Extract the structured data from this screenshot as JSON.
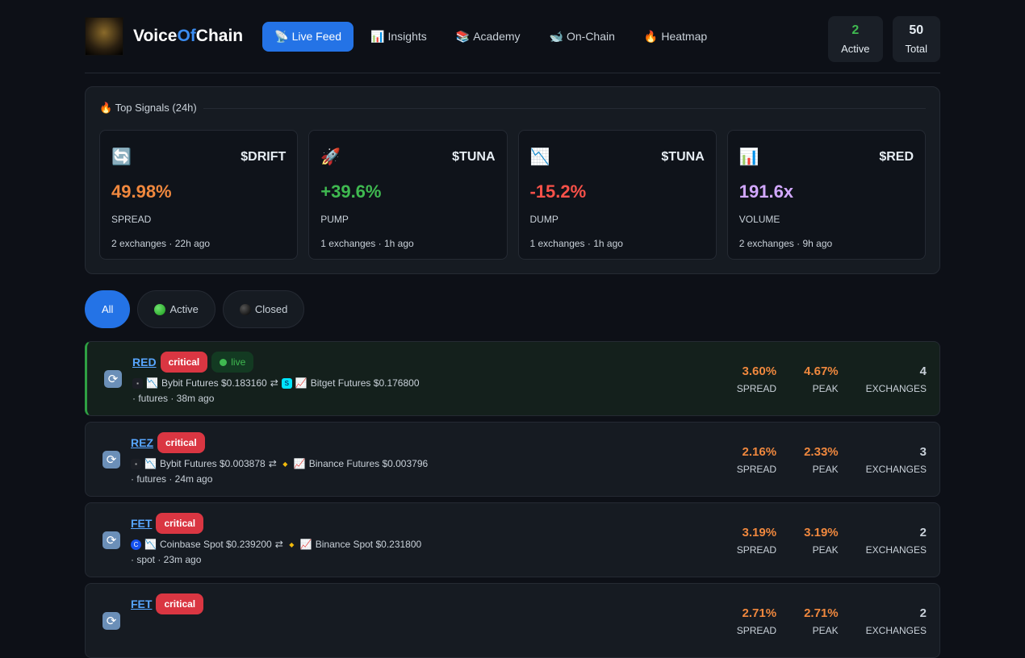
{
  "brand": {
    "pre": "Voice",
    "mid": "Of",
    "post": "Chain"
  },
  "nav": [
    {
      "icon": "📡",
      "label": "Live Feed"
    },
    {
      "icon": "📊",
      "label": "Insights"
    },
    {
      "icon": "📚",
      "label": "Academy"
    },
    {
      "icon": "🐋",
      "label": "On-Chain"
    },
    {
      "icon": "🔥",
      "label": "Heatmap"
    }
  ],
  "stats": {
    "active": "2",
    "active_label": "Active",
    "total": "50",
    "total_label": "Total"
  },
  "top": {
    "title": "🔥 Top Signals (24h)",
    "cards": [
      {
        "icon": "🔄",
        "symbol": "$DRIFT",
        "value": "49.98%",
        "type": "SPREAD",
        "meta": "2 exchanges · 22h ago",
        "color": "#f0883e"
      },
      {
        "icon": "🚀",
        "symbol": "$TUNA",
        "value": "+39.6%",
        "type": "PUMP",
        "meta": "1 exchanges · 1h ago",
        "color": "#3fb950"
      },
      {
        "icon": "📉",
        "symbol": "$TUNA",
        "value": "-15.2%",
        "type": "DUMP",
        "meta": "1 exchanges · 1h ago",
        "color": "#f85149"
      },
      {
        "icon": "📊",
        "symbol": "$RED",
        "value": "191.6x",
        "type": "VOLUME",
        "meta": "2 exchanges · 9h ago",
        "color": "#d2a8ff"
      }
    ]
  },
  "filters": {
    "all": "All",
    "active": "Active",
    "closed": "Closed"
  },
  "labels": {
    "spread": "SPREAD",
    "peak": "PEAK",
    "exchanges": "EXCHANGES",
    "critical": "critical",
    "live": "live",
    "arrow": "⇄",
    "down": "📉",
    "up": "📈"
  },
  "rows": [
    {
      "ticker": "RED",
      "from": "Bybit Futures $0.183160",
      "to": "Bitget Futures $0.176800",
      "sub": "· futures · 38m ago",
      "spread": "3.60%",
      "peak": "4.67%",
      "exchanges": "4"
    },
    {
      "ticker": "REZ",
      "from": "Bybit Futures $0.003878",
      "to": "Binance Futures $0.003796",
      "sub": "· futures · 24m ago",
      "spread": "2.16%",
      "peak": "2.33%",
      "exchanges": "3"
    },
    {
      "ticker": "FET",
      "from": "Coinbase Spot $0.239200",
      "to": "Binance Spot $0.231800",
      "sub": "· spot · 23m ago",
      "spread": "3.19%",
      "peak": "3.19%",
      "exchanges": "2"
    },
    {
      "ticker": "FET",
      "spread": "2.71%",
      "peak": "2.71%",
      "exchanges": "2"
    }
  ]
}
